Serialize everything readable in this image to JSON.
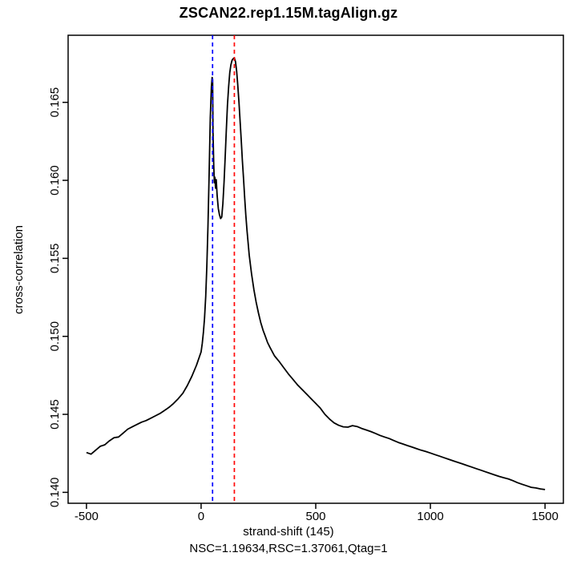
{
  "chart_data": {
    "type": "line",
    "title": "ZSCAN22.rep1.15M.tagAlign.gz",
    "xlabel": "strand-shift (145)",
    "ylabel": "cross-correlation",
    "subtitle": "NSC=1.19634,RSC=1.37061,Qtag=1",
    "xlim": [
      -580,
      1580
    ],
    "ylim": [
      0.1393,
      0.1693
    ],
    "xticks": [
      -500,
      0,
      500,
      1000,
      1500
    ],
    "xtick_labels": [
      "-500",
      "0",
      "500",
      "1000",
      "1500"
    ],
    "yticks": [
      0.14,
      0.145,
      0.15,
      0.155,
      0.16,
      0.165
    ],
    "ytick_labels": [
      "0.140",
      "0.145",
      "0.150",
      "0.155",
      "0.160",
      "0.165"
    ],
    "grid": false,
    "legend": null,
    "vlines": [
      {
        "name": "phantom-peak-line",
        "x": 50,
        "color": "#0000FF",
        "style": "dashed"
      },
      {
        "name": "fragment-length-line",
        "x": 145,
        "color": "#FF0000",
        "style": "dashed"
      }
    ],
    "series": [
      {
        "name": "cross-correlation",
        "color": "#000000",
        "x": [
          -500,
          -480,
          -460,
          -440,
          -420,
          -400,
          -380,
          -360,
          -340,
          -320,
          -300,
          -280,
          -260,
          -240,
          -220,
          -200,
          -180,
          -160,
          -140,
          -120,
          -100,
          -80,
          -60,
          -40,
          -20,
          0,
          5,
          10,
          15,
          20,
          25,
          30,
          35,
          40,
          45,
          48,
          50,
          52,
          55,
          58,
          60,
          63,
          66,
          70,
          75,
          80,
          85,
          90,
          95,
          100,
          105,
          110,
          115,
          120,
          125,
          130,
          135,
          140,
          145,
          150,
          155,
          160,
          165,
          170,
          175,
          180,
          185,
          190,
          195,
          200,
          210,
          220,
          230,
          240,
          250,
          260,
          270,
          280,
          290,
          300,
          320,
          340,
          360,
          380,
          400,
          420,
          440,
          460,
          480,
          500,
          520,
          540,
          560,
          580,
          600,
          620,
          640,
          660,
          680,
          700,
          720,
          740,
          760,
          780,
          800,
          820,
          840,
          860,
          880,
          900,
          920,
          940,
          960,
          980,
          1000,
          1020,
          1040,
          1060,
          1080,
          1100,
          1120,
          1140,
          1160,
          1180,
          1200,
          1220,
          1240,
          1260,
          1280,
          1300,
          1320,
          1340,
          1360,
          1380,
          1400,
          1420,
          1440,
          1460,
          1480,
          1500
        ],
        "y": [
          0.14255,
          0.14245,
          0.1427,
          0.14295,
          0.14305,
          0.1433,
          0.1435,
          0.14355,
          0.1438,
          0.14405,
          0.1442,
          0.14435,
          0.1445,
          0.1446,
          0.14475,
          0.1449,
          0.14505,
          0.14525,
          0.14545,
          0.1457,
          0.146,
          0.14635,
          0.14685,
          0.14745,
          0.14815,
          0.149,
          0.14955,
          0.15025,
          0.15115,
          0.15255,
          0.1545,
          0.15705,
          0.1605,
          0.164,
          0.166,
          0.1666,
          0.16645,
          0.1631,
          0.161,
          0.15985,
          0.1602,
          0.1595,
          0.16005,
          0.159,
          0.1582,
          0.1578,
          0.15755,
          0.15765,
          0.1585,
          0.1599,
          0.1615,
          0.1632,
          0.1648,
          0.166,
          0.1669,
          0.1674,
          0.1677,
          0.1678,
          0.16785,
          0.1676,
          0.167,
          0.1661,
          0.165,
          0.1638,
          0.1626,
          0.1613,
          0.1601,
          0.1589,
          0.1578,
          0.1568,
          0.1552,
          0.154,
          0.153,
          0.1522,
          0.1515,
          0.1509,
          0.1504,
          0.15,
          0.1496,
          0.1493,
          0.14875,
          0.1484,
          0.148,
          0.1476,
          0.14725,
          0.1469,
          0.1466,
          0.1463,
          0.146,
          0.1457,
          0.1454,
          0.145,
          0.1447,
          0.14445,
          0.1443,
          0.1442,
          0.14418,
          0.14428,
          0.14422,
          0.1441,
          0.144,
          0.1439,
          0.14378,
          0.14365,
          0.14355,
          0.14345,
          0.14332,
          0.1432,
          0.1431,
          0.143,
          0.1429,
          0.1428,
          0.1427,
          0.14262,
          0.14252,
          0.14242,
          0.14232,
          0.14222,
          0.14212,
          0.14202,
          0.14192,
          0.14182,
          0.14172,
          0.14162,
          0.14152,
          0.14142,
          0.14132,
          0.14122,
          0.14112,
          0.14102,
          0.14094,
          0.14086,
          0.14075,
          0.14062,
          0.14052,
          0.14042,
          0.14032,
          0.14028,
          0.14022,
          0.14018
        ]
      }
    ]
  }
}
